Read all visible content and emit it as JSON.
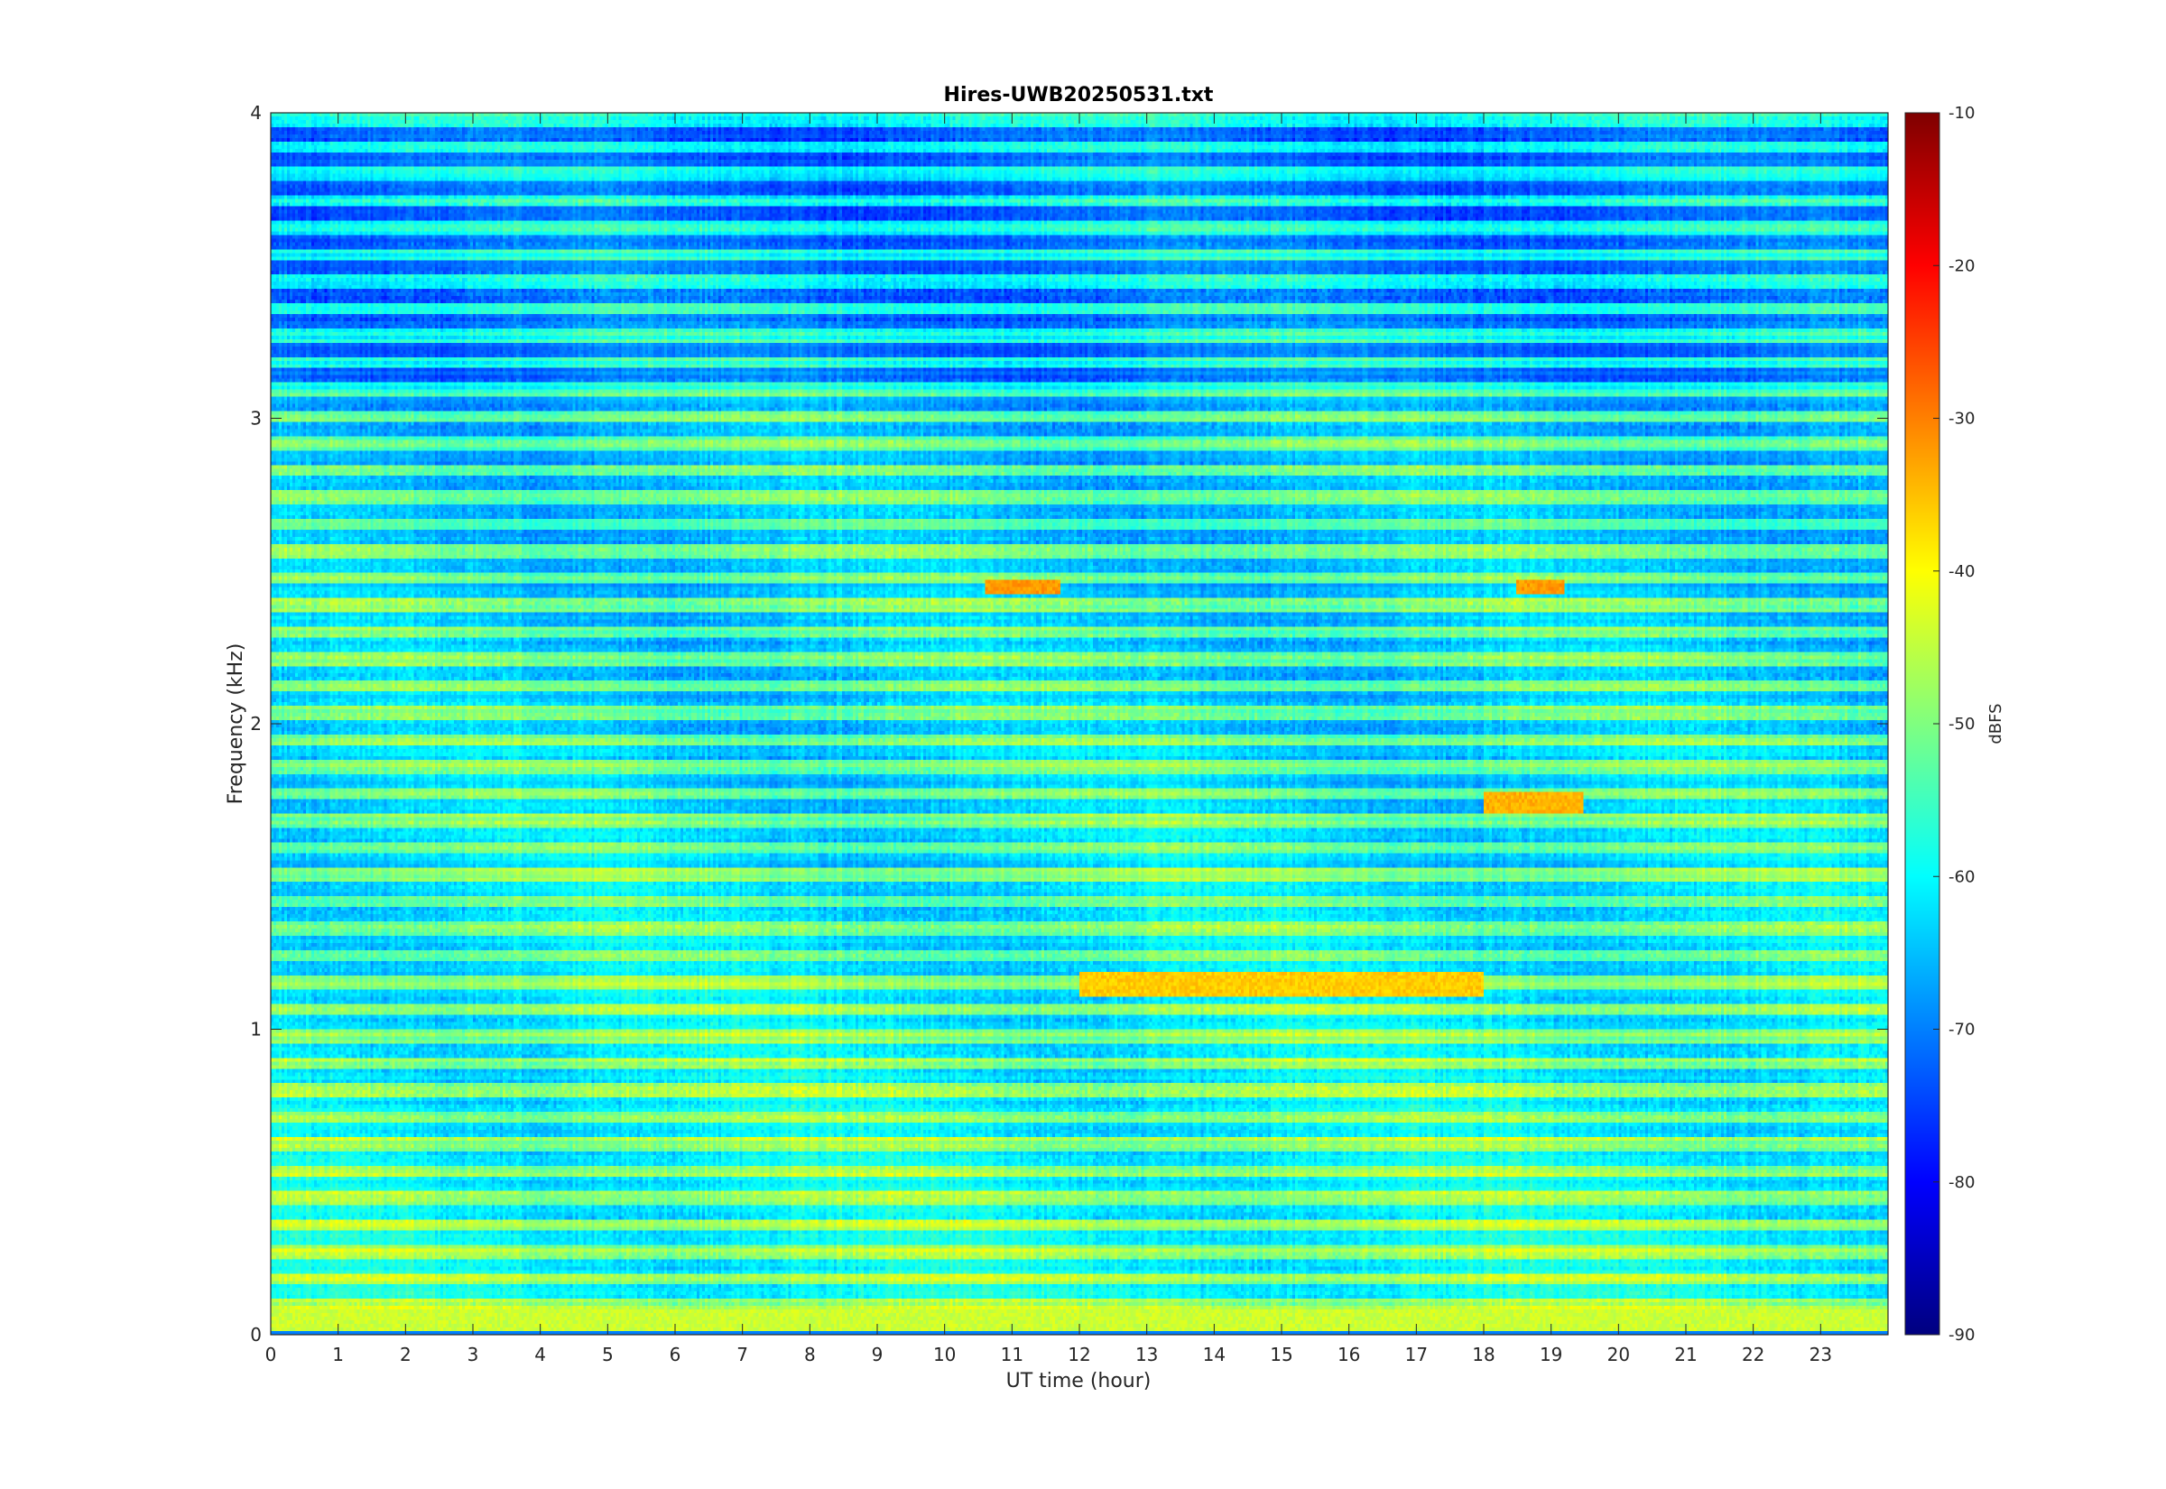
{
  "chart_data": {
    "type": "heatmap",
    "title": "Hires-UWB20250531.txt",
    "xlabel": "UT time (hour)",
    "ylabel": "Frequency (kHz)",
    "xlim": [
      0,
      24
    ],
    "ylim": [
      0,
      4
    ],
    "xticks": [
      0,
      1,
      2,
      3,
      4,
      5,
      6,
      7,
      8,
      9,
      10,
      11,
      12,
      13,
      14,
      15,
      16,
      17,
      18,
      19,
      20,
      21,
      22,
      23
    ],
    "yticks": [
      0,
      1,
      2,
      3,
      4
    ],
    "colorbar": {
      "label": "dBFS",
      "colormap": "jet",
      "range": [
        -90,
        -10
      ],
      "ticks": [
        -90,
        -80,
        -70,
        -60,
        -50,
        -40,
        -30,
        -20,
        -10
      ]
    },
    "features": [
      {
        "freq_khz": [
          0.0,
          0.08
        ],
        "level_dbfs": -44
      },
      {
        "freq_khz": [
          2.42,
          2.47
        ],
        "time_h": [
          10.6,
          11.7
        ],
        "level_dbfs": -32
      },
      {
        "freq_khz": [
          2.42,
          2.47
        ],
        "time_h": [
          18.5,
          19.2
        ],
        "level_dbfs": -32
      },
      {
        "freq_khz": [
          1.1,
          1.18
        ],
        "time_h": [
          12.0,
          18.0
        ],
        "level_dbfs": -36
      },
      {
        "freq_khz": [
          1.7,
          1.78
        ],
        "time_h": [
          18.0,
          19.5
        ],
        "level_dbfs": -34
      }
    ]
  }
}
